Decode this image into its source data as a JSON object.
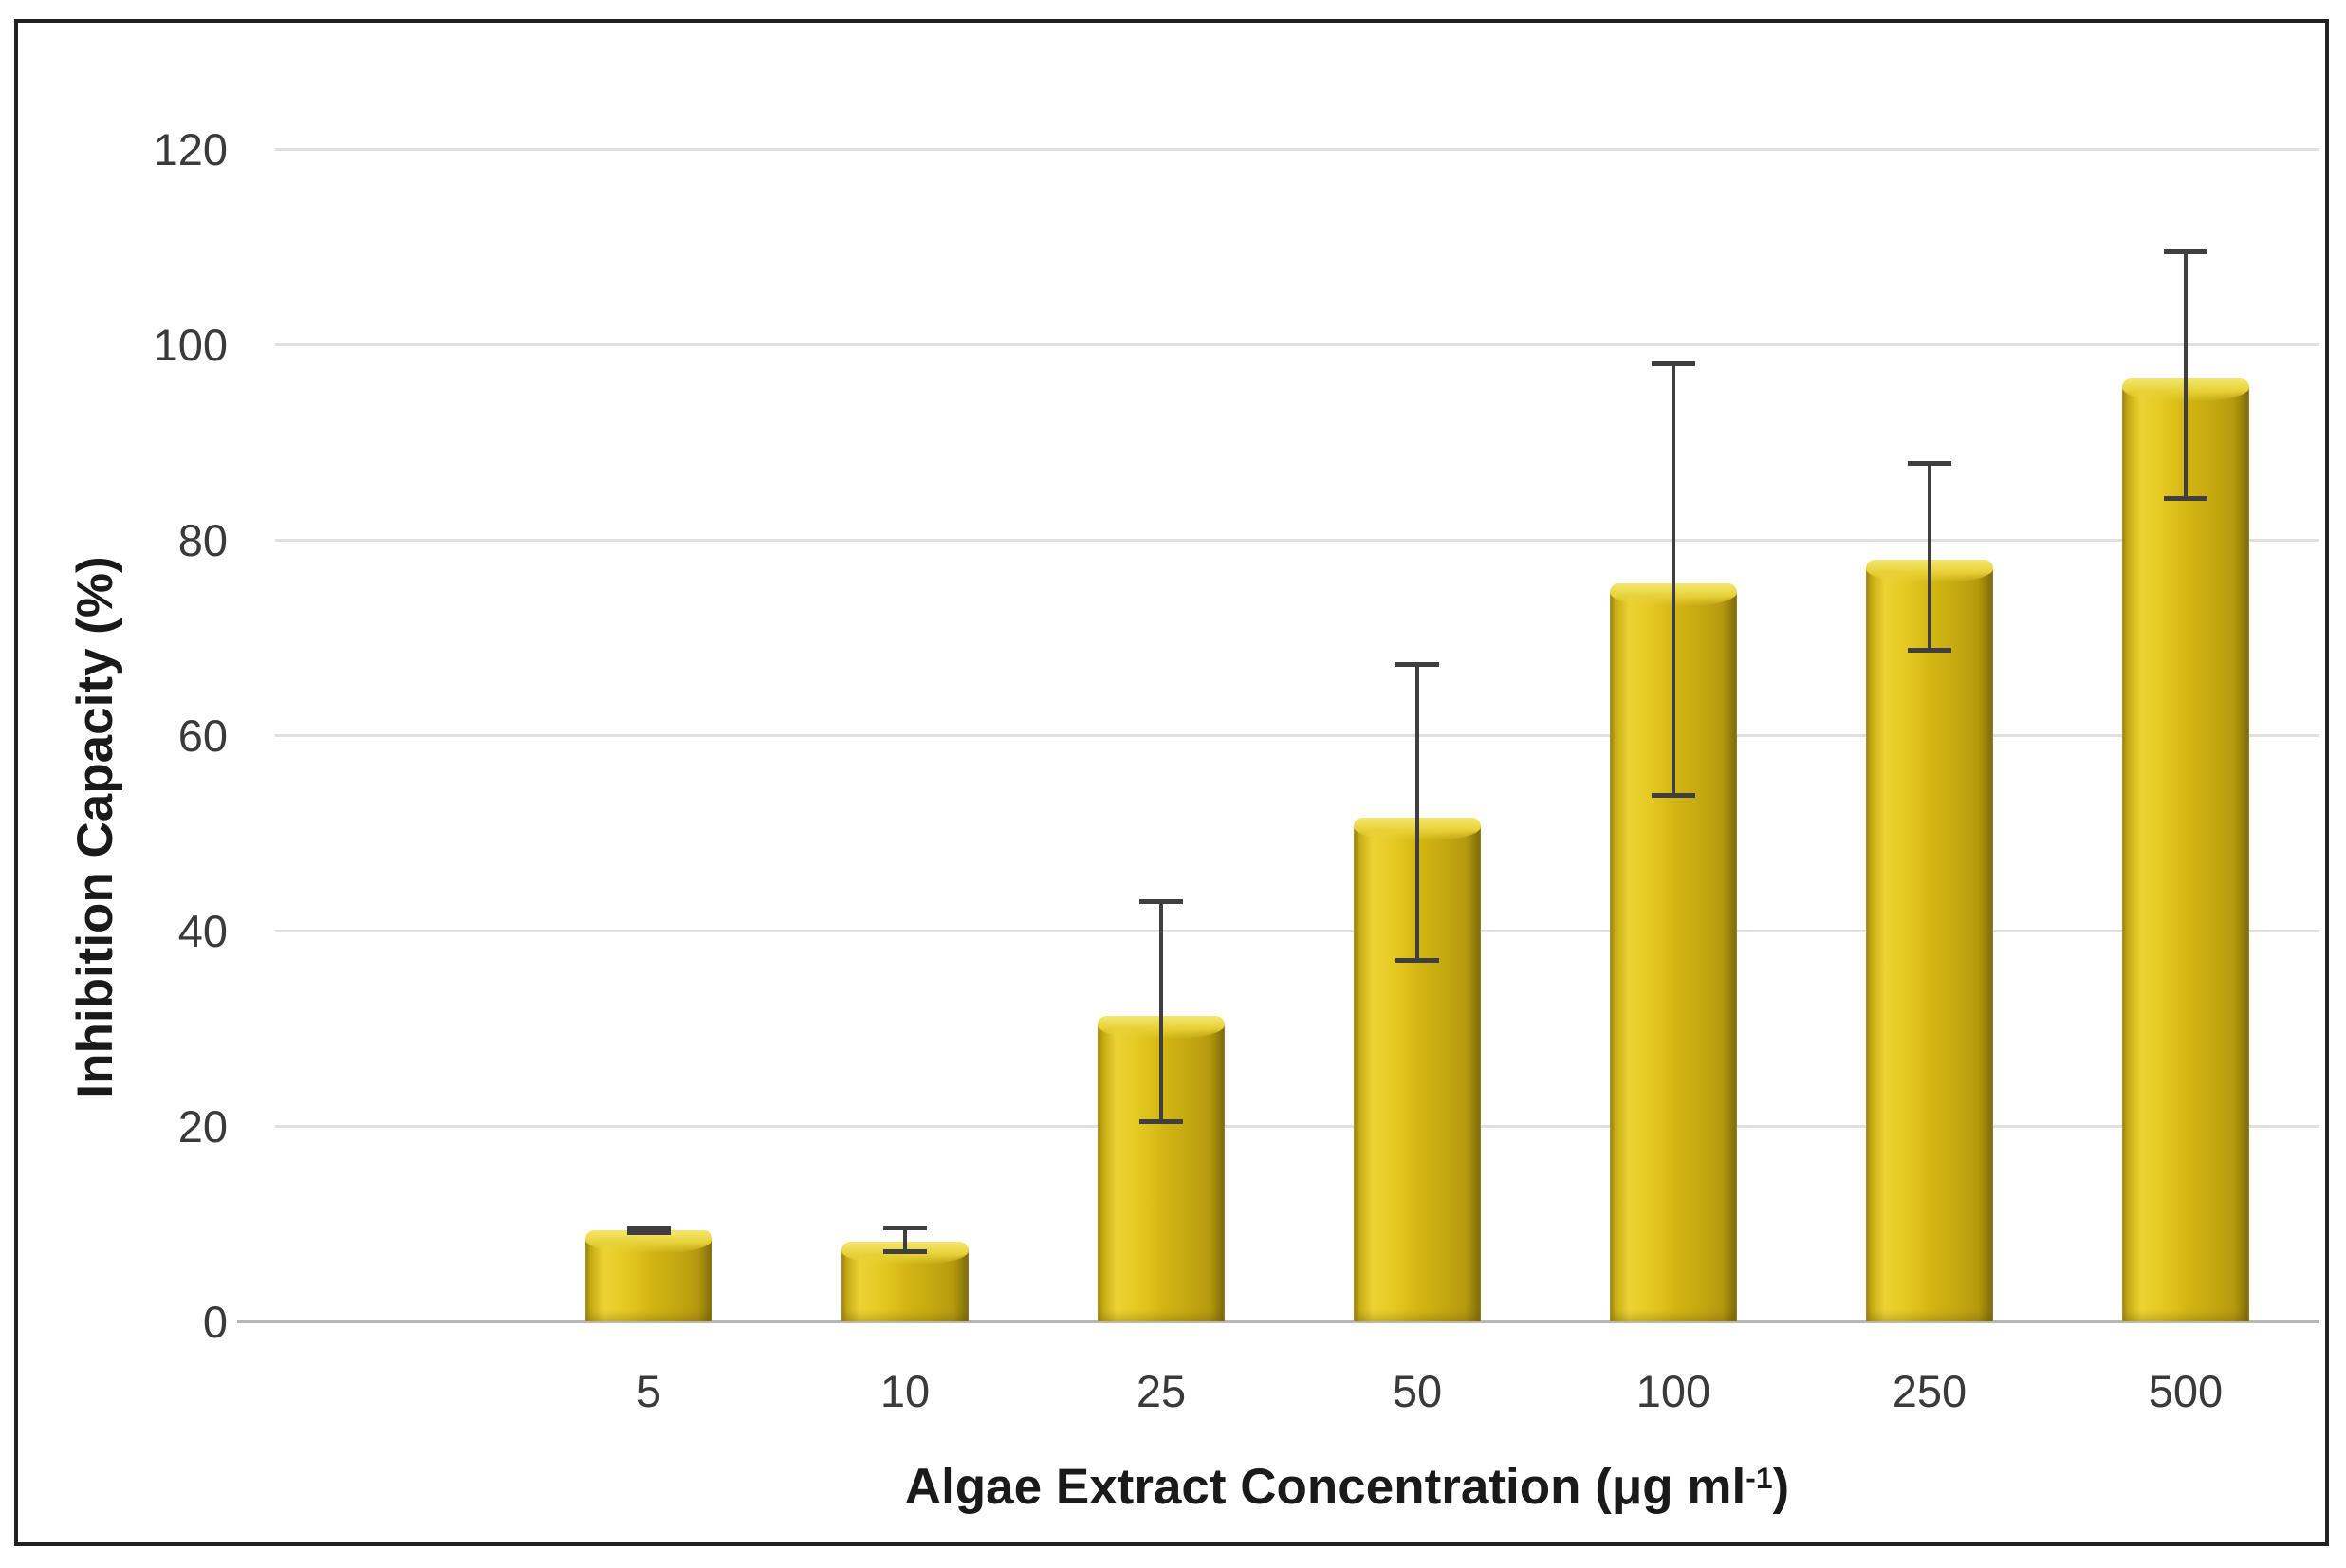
{
  "figure": {
    "background_color": "#ffffff",
    "border_color": "#222222"
  },
  "chart_data": {
    "type": "bar",
    "title": "",
    "xlabel_parts": {
      "main": "Algae Extract Concentration (μg ml",
      "sup": "-1",
      "close": ")"
    },
    "ylabel": "Inhibition Capacity (%)",
    "categories": [
      "5",
      "10",
      "25",
      "50",
      "100",
      "250",
      "500"
    ],
    "values": [
      9.3,
      8.2,
      31.3,
      51.6,
      75.5,
      78.0,
      96.5
    ],
    "error_plus": [
      0.5,
      1.6,
      11.9,
      15.9,
      22.8,
      10.1,
      13.2
    ],
    "error_minus": [
      0.5,
      1.3,
      11.1,
      14.9,
      21.9,
      9.6,
      12.5
    ],
    "y_ticks": [
      0,
      20,
      40,
      60,
      80,
      100,
      120
    ],
    "ylim": [
      0,
      120
    ],
    "grid": true,
    "legend": "none",
    "bar_color": "#d2b514",
    "bar_highlight": "#ecd334",
    "bar_shadow": "#8d770b",
    "error_color": "#3f3f3f",
    "gridline_color": "#e0e0e0",
    "axis_line_color": "#b7b7b7",
    "text_color": "#3a3a3a"
  }
}
